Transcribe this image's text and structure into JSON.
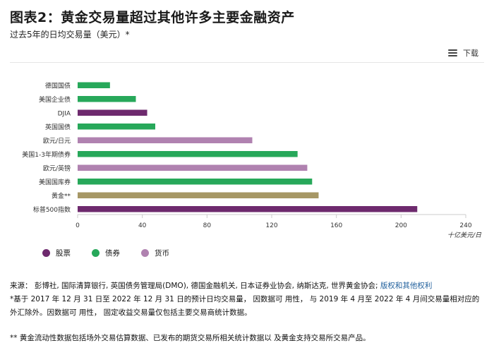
{
  "header": {
    "title": "图表2：黄金交易量超过其他许多主要金融资产",
    "subtitle": "过去5年的日均交易量（美元）*",
    "download_label": "下载"
  },
  "chart_data": {
    "type": "bar",
    "orientation": "horizontal",
    "categories": [
      "德国国债",
      "美国企业债",
      "DJIA",
      "英国国债",
      "欧元/日元",
      "美国1-3年期债券",
      "欧元/英镑",
      "美国国库券",
      "黄金**",
      "标普500指数"
    ],
    "values": [
      20,
      36,
      43,
      48,
      108,
      136,
      142,
      145,
      149,
      210
    ],
    "groups": [
      "债券",
      "债券",
      "股票",
      "债券",
      "货币",
      "债券",
      "货币",
      "债券",
      "黄金",
      "股票"
    ],
    "xlim": [
      0,
      240
    ],
    "xticks": [
      "0",
      "40",
      "80",
      "120",
      "160",
      "200",
      "240"
    ],
    "xlabel": "十亿美元/日",
    "legend": [
      {
        "name": "股票",
        "color": "#6e2a6e"
      },
      {
        "name": "债券",
        "color": "#27a85a"
      },
      {
        "name": "货币",
        "color": "#b082b0"
      }
    ],
    "colors": {
      "股票": "#6e2a6e",
      "债券": "#27a85a",
      "货币": "#b082b0",
      "黄金": "#a69765"
    },
    "grid": false,
    "legend_position": "bottom-left"
  },
  "notes": {
    "source_prefix": "来源： 彭博社, 国际清算银行, 英国债务管理局(DMO), 德国金融机关, 日本证券业协会, 纳斯达克, 世界黄金协会;",
    "source_link": "版权和其他权利",
    "footnote1": "*基于 2017 年 12 月 31 日至 2022 年 12 月 31 日的预计日均交易量， 因数据可 用性， 与 2019 年 4 月至 2022 年 4 月间交易量相对应的外汇除外。因数据可 用性， 固定收益交易量仅包括主要交易商统计数据。",
    "footnote2": "** 黄金流动性数据包括场外交易估算数据、已发布的期货交易所相关统计数据以 及黄金支持交易所交易产品。"
  }
}
